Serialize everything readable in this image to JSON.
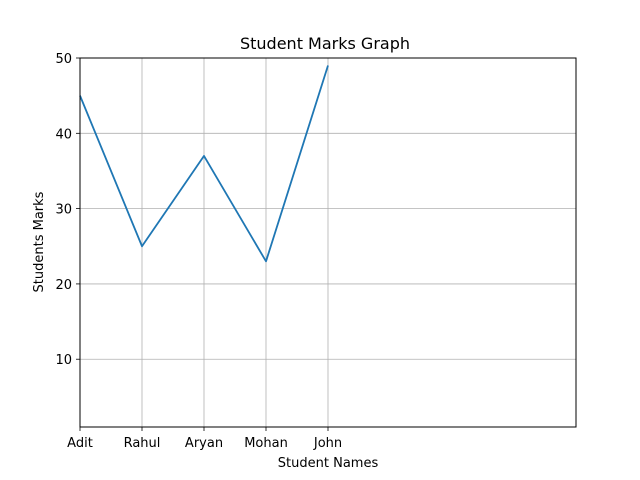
{
  "chart_data": {
    "type": "line",
    "title": "Student Marks Graph",
    "xlabel": "Student Names",
    "ylabel": "Students Marks",
    "categories": [
      "Adit",
      "Rahul",
      "Aryan",
      "Mohan",
      "John"
    ],
    "series": [
      {
        "values": [
          45,
          25,
          37,
          23,
          49
        ],
        "color": "#1f77b4"
      }
    ],
    "xlim": [
      0,
      8
    ],
    "ylim": [
      1,
      50
    ],
    "yticks": [
      10,
      20,
      30,
      40,
      50
    ],
    "grid": true
  }
}
